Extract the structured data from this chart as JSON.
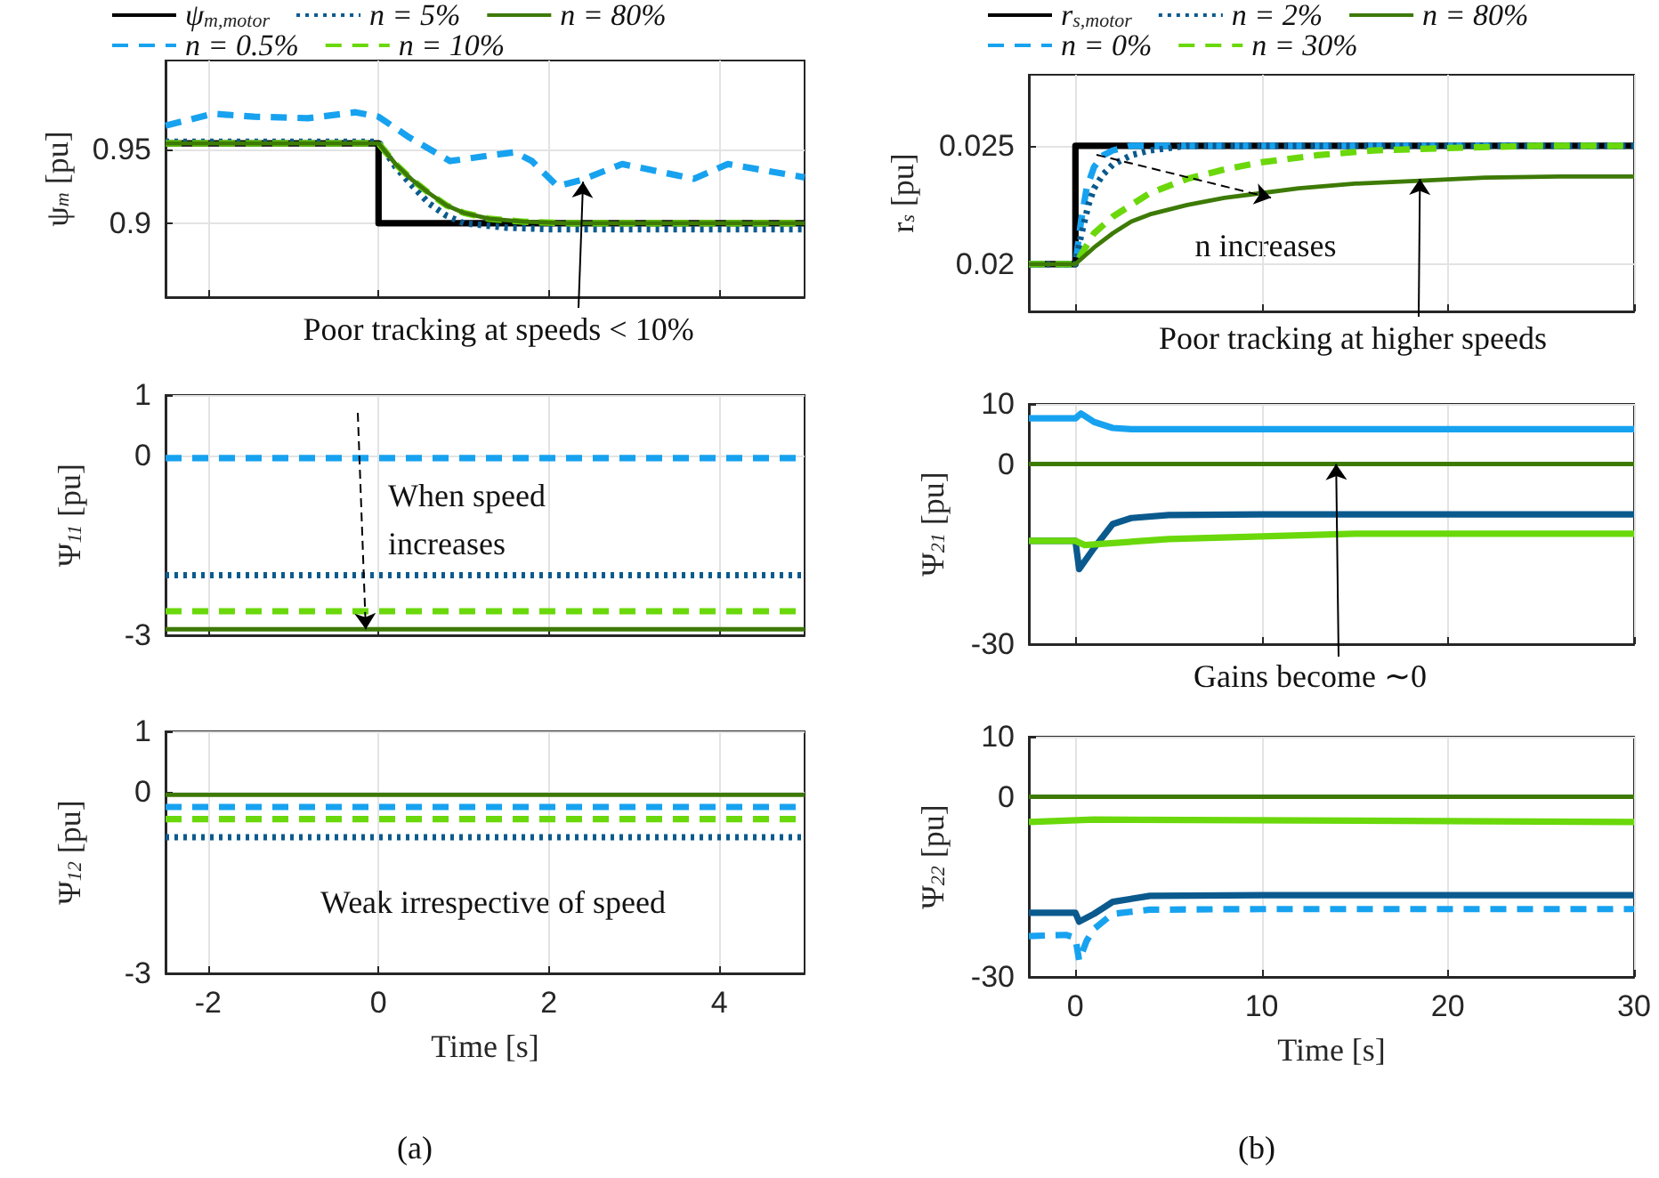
{
  "chart_data": [
    {
      "type": "line",
      "ylabel": "ψ$_{m}$ [pu]",
      "xlim": [
        -2.5,
        5
      ],
      "xticks": [
        -2,
        0,
        2,
        4
      ],
      "ylim": [
        0.85,
        1.01
      ],
      "yticks": [
        0.9,
        0.95
      ],
      "grid": true,
      "tick_labels": "y",
      "legend": "top",
      "annotations": [
        {
          "text": "Poor tracking at speeds < 10%",
          "x": 2.4,
          "y": 0.928
        }
      ],
      "series": [
        {
          "name": "ψ$_{m,motor}$",
          "color": "#000000",
          "line_style": "solid",
          "x": [
            -2.5,
            0,
            0,
            5
          ],
          "values": [
            0.954,
            0.954,
            0.9,
            0.9
          ]
        },
        {
          "name": "n = 0.5%",
          "color": "#17a2f0",
          "line_style": "dashed",
          "x": [
            -2.5,
            -1.94,
            -1.46,
            -0.83,
            -0.27,
            0,
            0.36,
            0.84,
            1.33,
            1.6,
            1.8,
            2.1,
            2.37,
            2.86,
            3.2,
            3.7,
            4.1,
            4.5,
            5
          ],
          "values": [
            0.966,
            0.974,
            0.972,
            0.971,
            0.975,
            0.972,
            0.958,
            0.942,
            0.946,
            0.948,
            0.942,
            0.925,
            0.929,
            0.94,
            0.936,
            0.93,
            0.94,
            0.936,
            0.931
          ]
        },
        {
          "name": "n = 5%",
          "color": "#0b5a8e",
          "line_style": "dotted",
          "x": [
            -2.5,
            0,
            0.2,
            0.4,
            0.6,
            0.8,
            1,
            1.5,
            2,
            5
          ],
          "values": [
            0.955,
            0.955,
            0.938,
            0.925,
            0.913,
            0.905,
            0.9,
            0.897,
            0.896,
            0.896
          ]
        },
        {
          "name": "n = 10%",
          "color": "#6ad80a",
          "line_style": "dashed",
          "x": [
            -2.5,
            0,
            0.2,
            0.4,
            0.6,
            0.8,
            1,
            1.3,
            1.7,
            2.2,
            5
          ],
          "values": [
            0.954,
            0.954,
            0.94,
            0.929,
            0.92,
            0.912,
            0.907,
            0.903,
            0.901,
            0.9,
            0.9
          ]
        },
        {
          "name": "n = 80%",
          "color": "#3d7a06",
          "line_style": "solid",
          "x": [
            -2.5,
            0,
            0.2,
            0.4,
            0.6,
            0.8,
            1,
            1.3,
            1.7,
            2.2,
            5
          ],
          "values": [
            0.954,
            0.954,
            0.94,
            0.929,
            0.92,
            0.912,
            0.907,
            0.903,
            0.901,
            0.9,
            0.9
          ]
        }
      ]
    },
    {
      "type": "line",
      "ylabel": "r$_{s}$ [pu]",
      "xlim": [
        -2.5,
        30
      ],
      "xticks": [
        0,
        10,
        20,
        30
      ],
      "ylim": [
        0.018,
        0.028
      ],
      "yticks": [
        0.02,
        0.025
      ],
      "grid": true,
      "tick_labels": "y",
      "legend": "top",
      "annotations": [
        {
          "text": "n increases",
          "x": 10.5,
          "y": 0.0228
        },
        {
          "text": "Poor tracking at higher speeds",
          "x": 18.5,
          "y": 0.0236
        }
      ],
      "series": [
        {
          "name": "r$_{s,motor}$",
          "color": "#000000",
          "line_style": "solid",
          "x": [
            -2.5,
            0,
            0,
            30
          ],
          "values": [
            0.02,
            0.02,
            0.025,
            0.025
          ]
        },
        {
          "name": "n = 0%",
          "color": "#17a2f0",
          "line_style": "dashed",
          "x": [
            -2.5,
            0,
            0.3,
            0.6,
            1,
            1.5,
            2,
            3,
            30
          ],
          "values": [
            0.02,
            0.02,
            0.0218,
            0.0232,
            0.0241,
            0.0246,
            0.0248,
            0.025,
            0.025
          ]
        },
        {
          "name": "n = 2%",
          "color": "#0b5a8e",
          "line_style": "dotted",
          "x": [
            -2.5,
            0,
            0.3,
            0.7,
            1,
            1.5,
            2,
            3,
            4,
            6,
            30
          ],
          "values": [
            0.02,
            0.02,
            0.0212,
            0.0225,
            0.0232,
            0.0238,
            0.0242,
            0.0246,
            0.0248,
            0.025,
            0.025
          ]
        },
        {
          "name": "n = 30%",
          "color": "#6ad80a",
          "line_style": "dashed",
          "x": [
            -2.5,
            0,
            1,
            2,
            3,
            4,
            6,
            8,
            10,
            13,
            16,
            20,
            25,
            30
          ],
          "values": [
            0.02,
            0.02,
            0.0213,
            0.022,
            0.0225,
            0.023,
            0.0236,
            0.024,
            0.0243,
            0.0246,
            0.0248,
            0.0249,
            0.025,
            0.025
          ]
        },
        {
          "name": "n = 80%",
          "color": "#3d7a06",
          "line_style": "solid",
          "x": [
            -2.5,
            0,
            1,
            2,
            3,
            4,
            6,
            8,
            10,
            12,
            15,
            18,
            22,
            26,
            30
          ],
          "values": [
            0.02,
            0.02,
            0.0207,
            0.0213,
            0.0218,
            0.0221,
            0.0225,
            0.0228,
            0.023,
            0.0232,
            0.0234,
            0.0235,
            0.02365,
            0.0237,
            0.0237
          ]
        }
      ]
    },
    {
      "type": "line",
      "ylabel": "Ψ$_{11}$ [pu]",
      "xlim": [
        -2.5,
        5
      ],
      "xticks": [
        -2,
        0,
        2,
        4
      ],
      "ylim": [
        -3,
        1
      ],
      "yticks": [
        -3,
        0,
        1
      ],
      "grid": true,
      "tick_labels": "y",
      "annotations": [
        {
          "text": "When speed\nincreases",
          "x": -0.15,
          "y": -2.9
        }
      ],
      "series": [
        {
          "color": "#17a2f0",
          "line_style": "dashed",
          "x": [
            -2.5,
            5
          ],
          "values": [
            -0.05,
            -0.05
          ]
        },
        {
          "color": "#0b5a8e",
          "line_style": "dotted",
          "x": [
            -2.5,
            5
          ],
          "values": [
            -2,
            -2
          ]
        },
        {
          "color": "#6ad80a",
          "line_style": "dashed",
          "x": [
            -2.5,
            5
          ],
          "values": [
            -2.6,
            -2.6
          ]
        },
        {
          "color": "#3d7a06",
          "line_style": "solid",
          "x": [
            -2.5,
            5
          ],
          "values": [
            -2.9,
            -2.9
          ]
        }
      ]
    },
    {
      "type": "line",
      "ylabel": "Ψ$_{21}$ [pu]",
      "xlim": [
        -2.5,
        30
      ],
      "xticks": [
        0,
        10,
        20,
        30
      ],
      "ylim": [
        -30,
        10
      ],
      "yticks": [
        -30,
        0,
        10
      ],
      "grid": true,
      "tick_labels": "y",
      "annotations": [
        {
          "text": "Gains become ∼0",
          "x": 14,
          "y": 0
        }
      ],
      "series": [
        {
          "color": "#17a2f0",
          "line_style": "solid",
          "x": [
            -2.5,
            0,
            0.3,
            1,
            2,
            3,
            30
          ],
          "values": [
            7.6,
            7.6,
            8.4,
            7,
            6,
            5.8,
            5.8
          ]
        },
        {
          "color": "#0b5a8e",
          "line_style": "solid",
          "x": [
            -2.5,
            0,
            0.2,
            1,
            2,
            3,
            5,
            10,
            30
          ],
          "values": [
            -12.8,
            -12.8,
            -17.5,
            -14,
            -10,
            -9,
            -8.5,
            -8.4,
            -8.4
          ]
        },
        {
          "color": "#6ad80a",
          "line_style": "solid",
          "x": [
            -2.5,
            0,
            0.5,
            5,
            15,
            30
          ],
          "values": [
            -12.8,
            -12.8,
            -13.5,
            -12.5,
            -11.6,
            -11.6
          ]
        },
        {
          "color": "#3d7a06",
          "line_style": "solid",
          "x": [
            -2.5,
            30
          ],
          "values": [
            0,
            0
          ]
        }
      ]
    },
    {
      "type": "line",
      "ylabel": "Ψ$_{12}$ [pu]",
      "xlabel": "Time [s]",
      "xlim": [
        -2.5,
        5
      ],
      "xticks": [
        -2,
        0,
        2,
        4
      ],
      "ylim": [
        -3,
        1
      ],
      "yticks": [
        -3,
        0,
        1
      ],
      "grid": true,
      "annotations": [
        "Weak irrespective of speed",
        "(a)"
      ],
      "series": [
        {
          "color": "#17a2f0",
          "line_style": "dashed",
          "x": [
            -2.5,
            5
          ],
          "values": [
            -0.25,
            -0.25
          ]
        },
        {
          "color": "#0b5a8e",
          "line_style": "dotted",
          "x": [
            -2.5,
            5
          ],
          "values": [
            -0.75,
            -0.75
          ]
        },
        {
          "color": "#6ad80a",
          "line_style": "dashed",
          "x": [
            -2.5,
            5
          ],
          "values": [
            -0.45,
            -0.45
          ]
        },
        {
          "color": "#3d7a06",
          "line_style": "solid",
          "x": [
            -2.5,
            5
          ],
          "values": [
            -0.05,
            -0.05
          ]
        }
      ]
    },
    {
      "type": "line",
      "ylabel": "Ψ$_{22}$ [pu]",
      "xlabel": "Time [s]",
      "xlim": [
        -2.5,
        30
      ],
      "xticks": [
        0,
        10,
        20,
        30
      ],
      "ylim": [
        -30,
        10
      ],
      "yticks": [
        -30,
        0,
        10
      ],
      "grid": true,
      "annotations": [
        "(b)"
      ],
      "series": [
        {
          "color": "#17a2f0",
          "line_style": "dashed",
          "x": [
            -2.5,
            -0.5,
            0,
            0.2,
            0.6,
            1,
            2,
            4,
            10,
            30
          ],
          "values": [
            -23.2,
            -23,
            -23.5,
            -27.3,
            -24,
            -22,
            -19.5,
            -18.8,
            -18.7,
            -18.7
          ]
        },
        {
          "color": "#0b5a8e",
          "line_style": "solid",
          "x": [
            -2.5,
            0,
            0.2,
            1,
            2,
            4,
            10,
            30
          ],
          "values": [
            -19.3,
            -19.3,
            -20.8,
            -19.5,
            -17.5,
            -16.5,
            -16.4,
            -16.4
          ]
        },
        {
          "color": "#6ad80a",
          "line_style": "solid",
          "x": [
            -2.5,
            1,
            30
          ],
          "values": [
            -4.2,
            -3.8,
            -4.2
          ]
        },
        {
          "color": "#3d7a06",
          "line_style": "solid",
          "x": [
            -2.5,
            30
          ],
          "values": [
            0,
            0
          ]
        }
      ]
    }
  ]
}
